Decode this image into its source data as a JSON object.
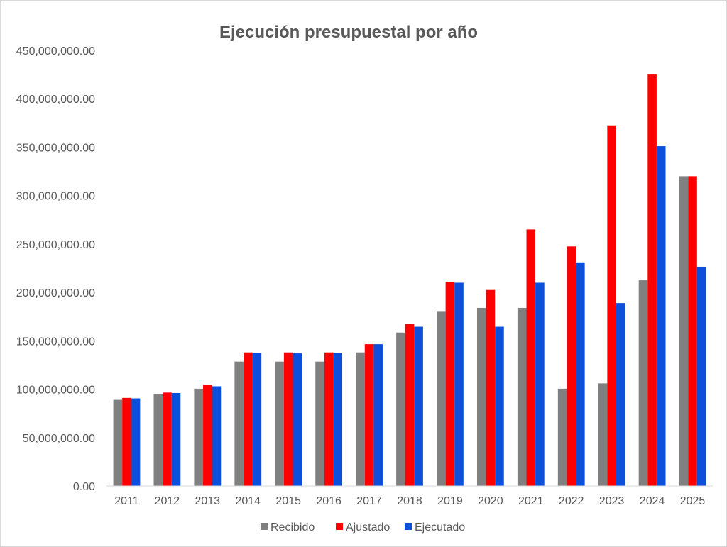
{
  "chart_data": {
    "type": "bar",
    "title": "Ejecución presupuestal por año",
    "categories": [
      "2011",
      "2012",
      "2013",
      "2014",
      "2015",
      "2016",
      "2017",
      "2018",
      "2019",
      "2020",
      "2021",
      "2022",
      "2023",
      "2024",
      "2025"
    ],
    "series": [
      {
        "name": "Recibido",
        "color": "#808080",
        "values": [
          89000000,
          95000000,
          100500000,
          128500000,
          128500000,
          128500000,
          138000000,
          158500000,
          180000000,
          184000000,
          184000000,
          100500000,
          106000000,
          212500000,
          320000000
        ]
      },
      {
        "name": "Ajustado",
        "color": "#ff0000",
        "values": [
          91000000,
          96500000,
          104500000,
          138000000,
          138000000,
          138000000,
          146500000,
          167500000,
          211000000,
          202500000,
          265000000,
          247500000,
          372500000,
          425000000,
          320000000
        ]
      },
      {
        "name": "Ejecutado",
        "color": "#0b4fdb",
        "values": [
          90500000,
          96000000,
          103000000,
          137500000,
          137000000,
          137500000,
          146500000,
          164500000,
          210000000,
          164500000,
          210000000,
          231000000,
          189000000,
          351000000,
          226500000
        ]
      }
    ],
    "ylim": [
      0,
      450000000
    ],
    "yticks": [
      0,
      50000000,
      100000000,
      150000000,
      200000000,
      250000000,
      300000000,
      350000000,
      400000000,
      450000000
    ],
    "ytick_labels": [
      "0.00",
      "50,000,000.00",
      "100,000,000.00",
      "150,000,000.00",
      "200,000,000.00",
      "250,000,000.00",
      "300,000,000.00",
      "350,000,000.00",
      "400,000,000.00",
      "450,000,000.00"
    ],
    "grid": false,
    "legend_position": "bottom"
  }
}
